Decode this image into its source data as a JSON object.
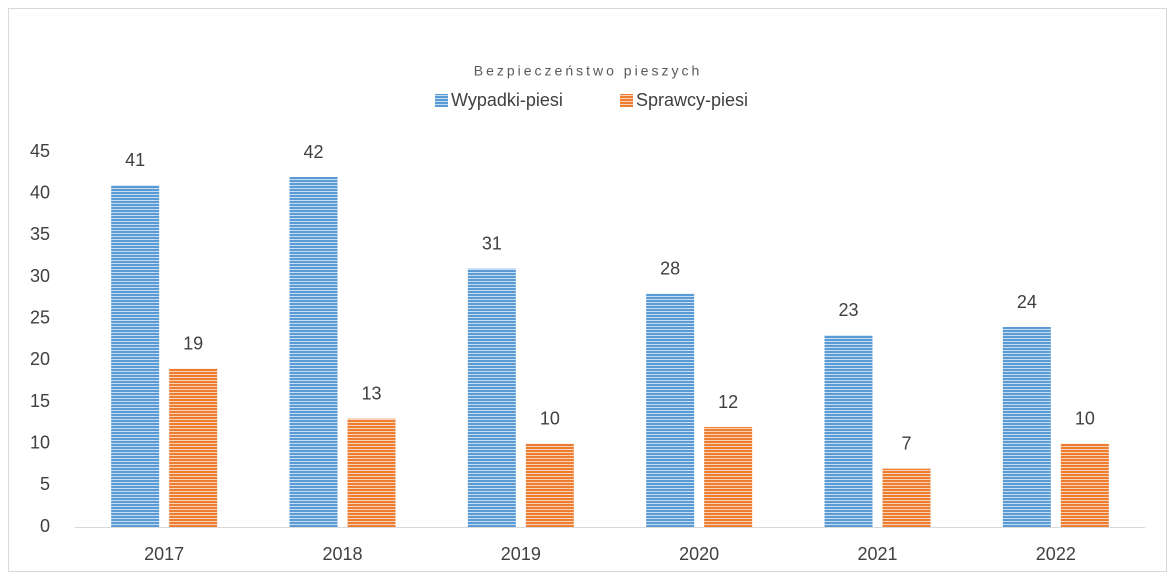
{
  "chart_data": {
    "type": "bar",
    "title": "Bezpieczeństwo pieszych",
    "categories": [
      "2017",
      "2018",
      "2019",
      "2020",
      "2021",
      "2022"
    ],
    "series": [
      {
        "name": "Wypadki-piesi",
        "color": "#5b9bd5",
        "values": [
          41,
          42,
          31,
          28,
          23,
          24
        ]
      },
      {
        "name": "Sprawcy-piesi",
        "color": "#ed7d31",
        "values": [
          19,
          13,
          10,
          12,
          7,
          10
        ]
      }
    ],
    "ylim": [
      0,
      45
    ],
    "yticks": [
      0,
      5,
      10,
      15,
      20,
      25,
      30,
      35,
      40,
      45
    ],
    "grid": false,
    "legend": "top"
  }
}
